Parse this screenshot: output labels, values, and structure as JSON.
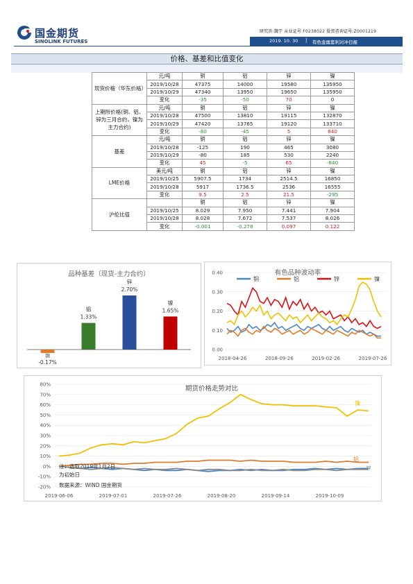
{
  "header": {
    "logo_cn": "国金期货",
    "logo_en": "SINOLINK FUTURES",
    "analyst_line": "研究员:魏宁  从业证号:F0238022  投资咨询证号:Z0001219",
    "date": "2019. 10. 30",
    "report_name": "有色金属套利对冲日报"
  },
  "section_title": "价格、基差和比值变化",
  "table": {
    "blocks": [
      {
        "label": "现货价格（华东价格）",
        "rows": [
          {
            "c": [
              "",
              "元/吨",
              "铜",
              "铝",
              "锌",
              "镍"
            ]
          },
          {
            "c": [
              "",
              "2019/10/28",
              "47375",
              "14000",
              "19580",
              "135950"
            ]
          },
          {
            "c": [
              "",
              "2019/10/29",
              "47340",
              "13950",
              "19650",
              "135950"
            ]
          },
          {
            "c": [
              "",
              "变化",
              "-35",
              "-50",
              "70",
              "0"
            ]
          }
        ]
      },
      {
        "label": "上期所价格(铜、铝、锌为三月合约，镍为主力合约)",
        "rows": [
          {
            "c": [
              "",
              "元/吨",
              "铜",
              "铝",
              "锌",
              "镍"
            ]
          },
          {
            "c": [
              "",
              "2019/10/28",
              "47500",
              "13810",
              "19115",
              "132870"
            ]
          },
          {
            "c": [
              "",
              "2019/10/29",
              "47420",
              "13765",
              "19120",
              "133710"
            ]
          },
          {
            "c": [
              "",
              "变化",
              "-80",
              "-45",
              "5",
              "840"
            ]
          }
        ]
      },
      {
        "label": "基差",
        "rows": [
          {
            "c": [
              "",
              "元/吨",
              "铜",
              "铝",
              "锌",
              "镍"
            ]
          },
          {
            "c": [
              "",
              "2019/10/28",
              "-125",
              "190",
              "465",
              "3080"
            ]
          },
          {
            "c": [
              "",
              "2019/10/29",
              "-80",
              "185",
              "530",
              "2240"
            ]
          },
          {
            "c": [
              "",
              "变化",
              "45",
              "-5",
              "65",
              "-840"
            ]
          }
        ]
      },
      {
        "label": "LME价格",
        "rows": [
          {
            "c": [
              "",
              "美元/吨",
              "铜",
              "铝",
              "锌",
              "镍"
            ]
          },
          {
            "c": [
              "",
              "2019/10/25",
              "5907.5",
              "1734",
              "2514.5",
              "16850"
            ]
          },
          {
            "c": [
              "",
              "2019/10/28",
              "5917",
              "1736.5",
              "2536",
              "16555"
            ]
          },
          {
            "c": [
              "",
              "变化",
              "9.5",
              "2.5",
              "21.5",
              "-295"
            ]
          }
        ]
      },
      {
        "label": "沪伦比值",
        "rows": [
          {
            "c": [
              "",
              "",
              "铜",
              "铝",
              "锌",
              "镍"
            ]
          },
          {
            "c": [
              "",
              "2019/10/25",
              "8.029",
              "7.950",
              "7.441",
              "7.904"
            ]
          },
          {
            "c": [
              "",
              "2019/10/28",
              "8.028",
              "7.672",
              "7.537",
              "8.026"
            ]
          },
          {
            "c": [
              "",
              "变化",
              "-0.001",
              "-0.278",
              "0.097",
              "0.122"
            ]
          }
        ]
      }
    ]
  },
  "chart_data": [
    {
      "type": "bar",
      "title": "品种基差（现货-主力合约）",
      "categories": [
        "铜",
        "铝",
        "锌",
        "镍"
      ],
      "values": [
        -0.17,
        1.33,
        2.7,
        1.65
      ],
      "value_labels": [
        "-0.17%",
        "1.33%",
        "2.70%",
        "1.65%"
      ],
      "colors": [
        "#e07b2a",
        "#3a7d2c",
        "#2a4f9a",
        "#c00000"
      ],
      "ylim": [
        -0.4,
        3.0
      ]
    },
    {
      "type": "line",
      "title": "有色品种波动率",
      "legend": [
        "铜",
        "铝",
        "锌",
        "镍"
      ],
      "colors": [
        "#4a86c8",
        "#e07b2a",
        "#e01010",
        "#f0c000"
      ],
      "ylim": [
        0,
        0.4
      ],
      "yticks": [
        "0.00",
        "0.10",
        "0.20",
        "0.30",
        "0.40"
      ],
      "xticks": [
        "2018-04-26",
        "2018-09-26",
        "2019-02-26",
        "2019-07-26"
      ],
      "series": [
        {
          "name": "铜",
          "values": [
            0.11,
            0.09,
            0.1,
            0.12,
            0.09,
            0.1,
            0.13,
            0.11,
            0.12,
            0.1,
            0.11,
            0.13,
            0.12,
            0.14,
            0.11,
            0.12,
            0.1,
            0.11,
            0.12,
            0.13,
            0.11,
            0.1,
            0.12,
            0.11,
            0.12,
            0.13,
            0.11,
            0.1,
            0.12,
            0.1,
            0.11,
            0.12,
            0.1,
            0.09,
            0.11,
            0.1,
            0.09,
            0.1,
            0.08,
            0.09,
            0.08,
            0.07,
            0.07
          ]
        },
        {
          "name": "铝",
          "values": [
            0.08,
            0.1,
            0.09,
            0.07,
            0.1,
            0.11,
            0.09,
            0.08,
            0.1,
            0.09,
            0.12,
            0.1,
            0.09,
            0.11,
            0.1,
            0.08,
            0.09,
            0.1,
            0.08,
            0.09,
            0.1,
            0.08,
            0.09,
            0.11,
            0.1,
            0.09,
            0.08,
            0.1,
            0.09,
            0.08,
            0.1,
            0.09,
            0.08,
            0.07,
            0.09,
            0.08,
            0.1,
            0.09,
            0.08,
            0.07,
            0.08,
            0.06,
            0.06
          ]
        },
        {
          "name": "锌",
          "values": [
            0.24,
            0.23,
            0.2,
            0.18,
            0.25,
            0.22,
            0.27,
            0.32,
            0.3,
            0.25,
            0.24,
            0.27,
            0.23,
            0.26,
            0.25,
            0.22,
            0.27,
            0.21,
            0.25,
            0.23,
            0.26,
            0.21,
            0.24,
            0.2,
            0.22,
            0.19,
            0.2,
            0.18,
            0.2,
            0.16,
            0.17,
            0.18,
            0.15,
            0.17,
            0.14,
            0.16,
            0.13,
            0.14,
            0.12,
            0.15,
            0.12,
            0.11,
            0.12
          ]
        },
        {
          "name": "镍",
          "values": [
            0.14,
            0.15,
            0.13,
            0.18,
            0.2,
            0.17,
            0.19,
            0.22,
            0.2,
            0.23,
            0.18,
            0.2,
            0.16,
            0.18,
            0.19,
            0.17,
            0.15,
            0.18,
            0.16,
            0.17,
            0.14,
            0.16,
            0.18,
            0.15,
            0.17,
            0.19,
            0.17,
            0.16,
            0.14,
            0.15,
            0.13,
            0.16,
            0.18,
            0.17,
            0.21,
            0.26,
            0.33,
            0.35,
            0.34,
            0.31,
            0.25,
            0.2,
            0.17
          ]
        }
      ]
    },
    {
      "type": "line",
      "title": "期货价格走势对比",
      "colors": [
        "#4a86c8",
        "#e07b2a",
        "#8a8a8a",
        "#f0c000"
      ],
      "ylim": [
        -20,
        80
      ],
      "yticks": [
        "80%",
        "70%",
        "60%",
        "50%",
        "40%",
        "30%",
        "20%",
        "10%",
        "0%",
        "-10%",
        "-20%"
      ],
      "xticks": [
        "2019-06-06",
        "2019-07-01",
        "2019-07-26",
        "2019-08-20",
        "2019-09-14",
        "2019-10-09"
      ],
      "series_labels": [
        "镍",
        "铝",
        "锌"
      ],
      "series": [
        {
          "name": "铜",
          "values": [
            0,
            -1,
            -2,
            -1,
            -2,
            -3,
            -2,
            -3,
            -4,
            -3,
            -4,
            -4,
            -3,
            -4,
            -5,
            -4,
            -4,
            -3,
            -4,
            -3,
            -4,
            -4,
            -3,
            -3,
            -2,
            -3,
            -2,
            -3,
            -2,
            -2
          ]
        },
        {
          "name": "铝",
          "values": [
            0,
            1,
            2,
            2,
            3,
            3,
            2,
            3,
            3,
            4,
            4,
            4,
            5,
            5,
            6,
            6,
            6,
            5,
            6,
            5,
            5,
            5,
            4,
            4,
            4,
            5,
            4,
            5,
            4,
            4
          ]
        },
        {
          "name": "锌",
          "values": [
            0,
            -1,
            -2,
            -3,
            -2,
            -1,
            -2,
            -3,
            -2,
            -3,
            -3,
            -2,
            -3,
            -4,
            -3,
            -3,
            -4,
            -4,
            -3,
            -4,
            -4,
            -3,
            -4,
            -4,
            -3,
            -3,
            -4,
            -3,
            -3,
            -3
          ]
        },
        {
          "name": "镍",
          "values": [
            10,
            11,
            13,
            18,
            21,
            22,
            21,
            24,
            23,
            25,
            27,
            32,
            41,
            47,
            49,
            56,
            62,
            70,
            65,
            61,
            60,
            60,
            59,
            59,
            59,
            58,
            57,
            49,
            55,
            54
          ]
        }
      ],
      "notes": [
        "注：选取2019年1月2日",
        "为初始日"
      ],
      "source": "数据来源：WIND 国金期货"
    }
  ]
}
